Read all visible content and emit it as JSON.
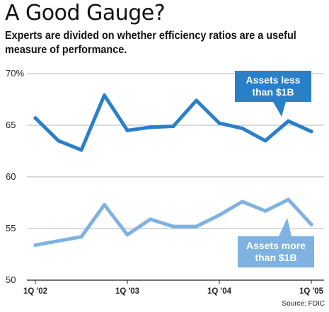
{
  "chart_data": {
    "type": "line",
    "title": "A Good Gauge?",
    "subtitle": "Experts are divided on whether efficiency ratios are a useful measure of performance.",
    "source": "Source: FDIC",
    "y_tick_labels": [
      "70%",
      "65",
      "60",
      "55",
      "50"
    ],
    "y_ticks": [
      70,
      65,
      60,
      55,
      50
    ],
    "ylim": [
      50,
      70
    ],
    "x_tick_labels": [
      "1Q '02",
      "1Q '03",
      "1Q '04",
      "1Q '05"
    ],
    "x_tick_positions": [
      0,
      4,
      8,
      12
    ],
    "grid": "horizontal",
    "series": [
      {
        "name": "Assets less than $1B",
        "label_lines": [
          "Assets less",
          "than $1B"
        ],
        "color": "#2a7fc9",
        "label_color": "#2a7fc9",
        "x": [
          0,
          1,
          2,
          3,
          4,
          5,
          6,
          7,
          8,
          9,
          10,
          11,
          12
        ],
        "values": [
          65.7,
          63.5,
          62.6,
          67.9,
          64.5,
          64.8,
          64.9,
          67.4,
          65.2,
          64.7,
          63.5,
          65.4,
          64.4
        ]
      },
      {
        "name": "Assets more than $1B",
        "label_lines": [
          "Assets more",
          "than $1B"
        ],
        "color": "#7fb2e0",
        "label_color": "#7fb2e0",
        "x": [
          0,
          2,
          3,
          4,
          5,
          6,
          7,
          8,
          9,
          10,
          11,
          12
        ],
        "values": [
          53.4,
          54.2,
          57.3,
          54.4,
          55.9,
          55.2,
          55.2,
          56.3,
          57.6,
          56.7,
          57.8,
          55.4
        ]
      }
    ]
  }
}
